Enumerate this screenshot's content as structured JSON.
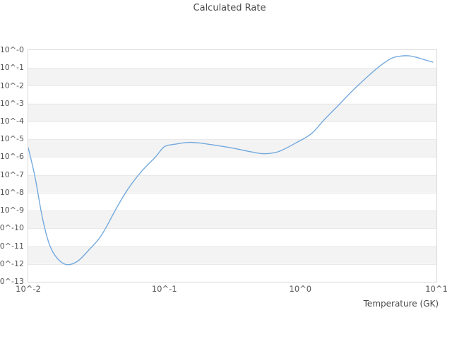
{
  "title": "Calculated Rate",
  "axes": {
    "x": {
      "label": "Temperature (GK)",
      "ticks": [
        "10^-2",
        "10^-1",
        "10^0",
        "10^1"
      ],
      "log_range": [
        -2,
        1
      ]
    },
    "y": {
      "label": "",
      "ticks": [
        "10^-0",
        "10^-1",
        "10^-2",
        "10^-3",
        "10^-4",
        "10^-5",
        "10^-6",
        "10^-7",
        "10^-8",
        "10^-9",
        "10^-10",
        "10^-11",
        "10^-12",
        "10^-13"
      ],
      "log_range": [
        0,
        -13
      ]
    }
  },
  "colors": {
    "line": "#74aade",
    "band_gray": "#f3f3f3",
    "band_white": "#ffffff",
    "gridline": "#e9e9e9",
    "border": "#d9d9d9",
    "title_text": "#4a4a4a",
    "tick_text": "#555555"
  },
  "chart_data": {
    "type": "line",
    "title": "Calculated Rate",
    "xlabel": "Temperature (GK)",
    "ylabel": "",
    "xscale": "log",
    "yscale": "log",
    "xlim": [
      0.01,
      10
    ],
    "ylim": [
      1e-13,
      1
    ],
    "grid": "horizontal-decades",
    "background_bands": "alternating white/gray per decade, white at top",
    "legend": "none",
    "series": [
      {
        "name": "calculated-rate",
        "x": [
          0.01,
          0.0112,
          0.0127,
          0.0143,
          0.0162,
          0.019,
          0.023,
          0.028,
          0.033,
          0.037,
          0.045,
          0.054,
          0.068,
          0.086,
          0.1,
          0.12,
          0.15,
          0.18,
          0.22,
          0.32,
          0.43,
          0.53,
          0.65,
          0.74,
          0.93,
          1.2,
          1.5,
          1.9,
          2.4,
          3.1,
          3.9,
          4.7,
          5.5,
          6.3,
          7.1,
          8.0,
          9.4
        ],
        "log10_y": [
          -5.48,
          -7.1,
          -9.4,
          -10.9,
          -11.65,
          -12.03,
          -11.85,
          -11.2,
          -10.6,
          -10.0,
          -8.8,
          -7.8,
          -6.8,
          -6.0,
          -5.42,
          -5.28,
          -5.18,
          -5.21,
          -5.3,
          -5.5,
          -5.7,
          -5.81,
          -5.75,
          -5.6,
          -5.2,
          -4.7,
          -3.9,
          -3.1,
          -2.3,
          -1.5,
          -0.85,
          -0.45,
          -0.33,
          -0.32,
          -0.4,
          -0.52,
          -0.67
        ]
      }
    ]
  }
}
